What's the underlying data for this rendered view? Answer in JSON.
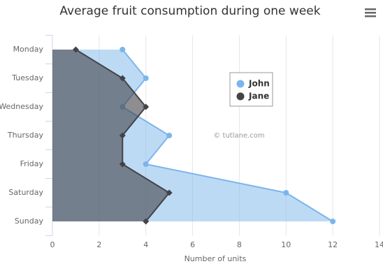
{
  "chart_data": {
    "type": "area",
    "orientation": "horizontal",
    "title": "Average fruit consumption during one week",
    "categories": [
      "Monday",
      "Tuesday",
      "Wednesday",
      "Thursday",
      "Friday",
      "Saturday",
      "Sunday"
    ],
    "series": [
      {
        "name": "John",
        "color": "#7cb5ec",
        "marker": "circle",
        "values": [
          3,
          4,
          3,
          5,
          4,
          10,
          12
        ]
      },
      {
        "name": "Jane",
        "color": "#434348",
        "marker": "diamond",
        "values": [
          1,
          3,
          4,
          3,
          3,
          5,
          4
        ]
      }
    ],
    "xlim": [
      0,
      14
    ],
    "xticks": [
      0,
      2,
      4,
      6,
      8,
      10,
      12,
      14
    ],
    "xlabel": "Number of units",
    "grid": true,
    "legend": true,
    "credits": "© tutlane.com"
  }
}
